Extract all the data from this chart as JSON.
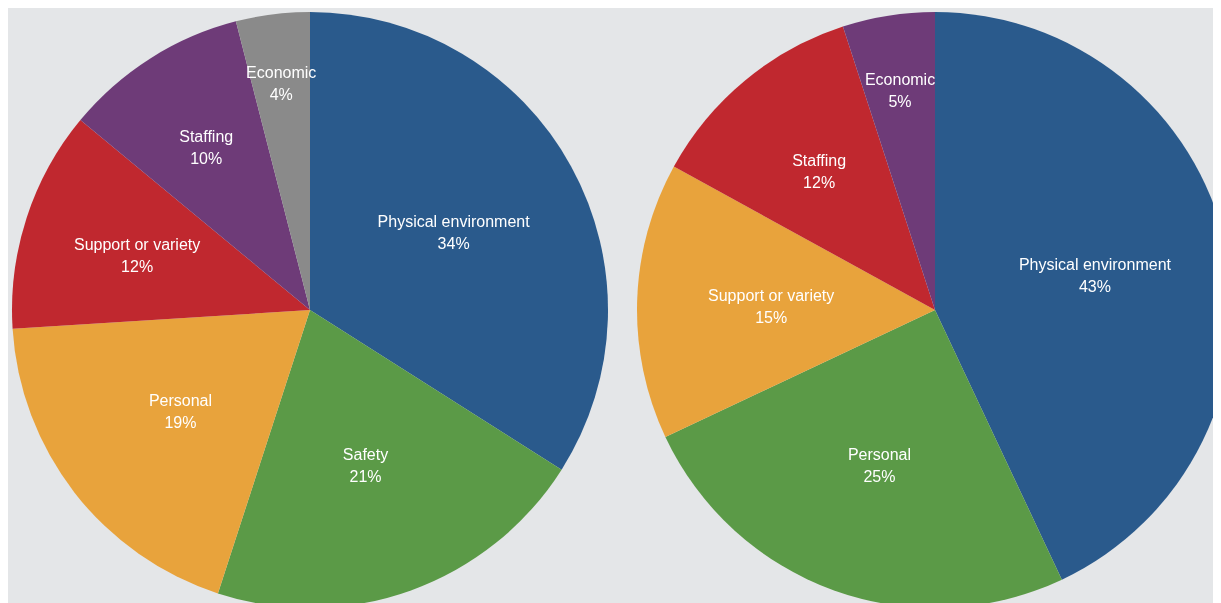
{
  "chart_data": [
    {
      "type": "pie",
      "categories": [
        "Physical environment",
        "Safety",
        "Personal",
        "Support or variety",
        "Staffing",
        "Economic"
      ],
      "values": [
        34,
        21,
        19,
        12,
        10,
        4
      ],
      "value_labels": [
        "34%",
        "21%",
        "19%",
        "12%",
        "10%",
        "4%"
      ],
      "colors": [
        "#2a5a8c",
        "#5b9a47",
        "#e8a33c",
        "#c0282f",
        "#6e3b78",
        "#8a8a8a"
      ]
    },
    {
      "type": "pie",
      "categories": [
        "Physical environment",
        "Personal",
        "Support or variety",
        "Staffing",
        "Economic"
      ],
      "values": [
        43,
        25,
        15,
        12,
        5
      ],
      "value_labels": [
        "43%",
        "25%",
        "15%",
        "12%",
        "5%"
      ],
      "colors": [
        "#2a5a8c",
        "#5b9a47",
        "#e8a33c",
        "#c0282f",
        "#6e3b78"
      ]
    }
  ]
}
